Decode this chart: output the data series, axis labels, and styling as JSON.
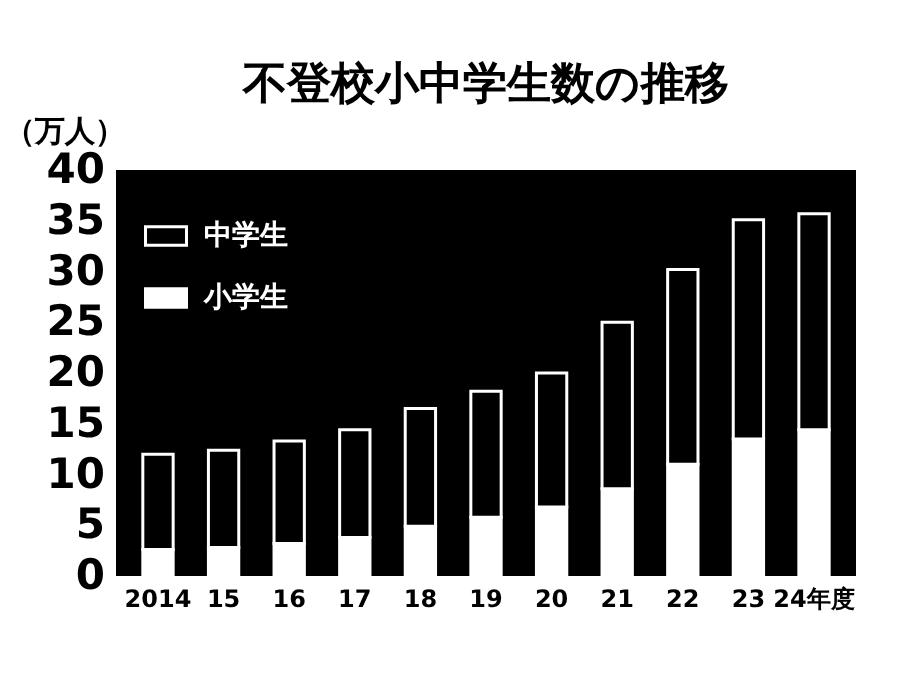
{
  "chart_data": {
    "type": "bar",
    "title": "不登校小中学生数の推移",
    "ylabel": "（万人）",
    "categories": [
      "2014",
      "15",
      "16",
      "17",
      "18",
      "19",
      "20",
      "21",
      "22",
      "23",
      "24年度"
    ],
    "stacked": true,
    "series": [
      {
        "name": "小学生",
        "color": "#ffffff",
        "values": [
          2.6,
          2.8,
          3.2,
          3.8,
          4.9,
          5.8,
          6.8,
          8.6,
          11.0,
          13.5,
          14.4
        ]
      },
      {
        "name": "中学生",
        "color": "#000000",
        "values": [
          9.4,
          9.6,
          10.1,
          10.6,
          11.6,
          12.4,
          13.2,
          16.4,
          19.2,
          21.6,
          21.3
        ]
      }
    ],
    "ylim": [
      0,
      40
    ],
    "yticks": [
      0,
      5,
      10,
      15,
      20,
      25,
      30,
      35,
      40
    ],
    "grid": false,
    "legend": "top left"
  }
}
